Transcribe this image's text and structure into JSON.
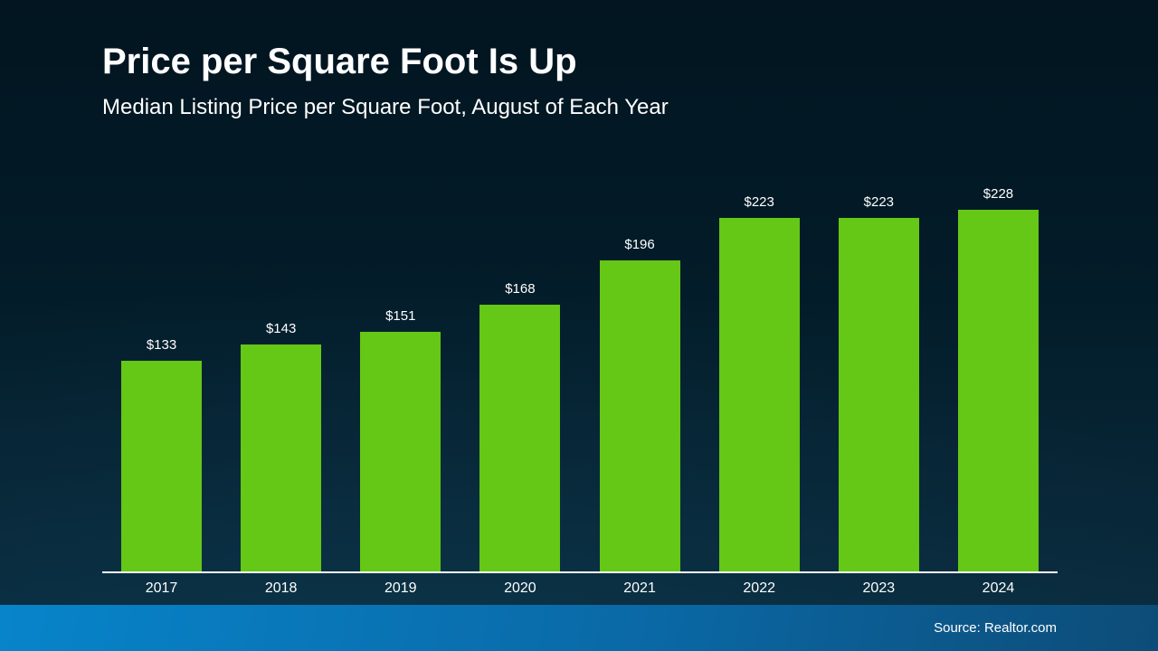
{
  "slide": {
    "title": "Price per Square Foot Is Up",
    "subtitle": "Median Listing Price per Square Foot, August of Each Year",
    "source": "Source: Realtor.com"
  },
  "chart_data": {
    "type": "bar",
    "title": "Price per Square Foot Is Up",
    "subtitle": "Median Listing Price per Square Foot, August of Each Year",
    "categories": [
      "2017",
      "2018",
      "2019",
      "2020",
      "2021",
      "2022",
      "2023",
      "2024"
    ],
    "values": [
      133,
      143,
      151,
      168,
      196,
      223,
      223,
      228
    ],
    "value_labels": [
      "$133",
      "$143",
      "$151",
      "$168",
      "$196",
      "$223",
      "$223",
      "$228"
    ],
    "xlabel": "",
    "ylabel": "",
    "ylim": [
      0,
      228
    ],
    "grid": false,
    "legend": false,
    "source": "Source: Realtor.com"
  },
  "colors": {
    "bg_top": "#021520",
    "bg_bottom": "#0b2e41",
    "bar": "#65c716",
    "text": "#ffffff",
    "axis_line": "#ffffff",
    "footer_left": "#0884ca",
    "footer_mid": "#0a69a6",
    "footer_right": "#0d4c78"
  }
}
